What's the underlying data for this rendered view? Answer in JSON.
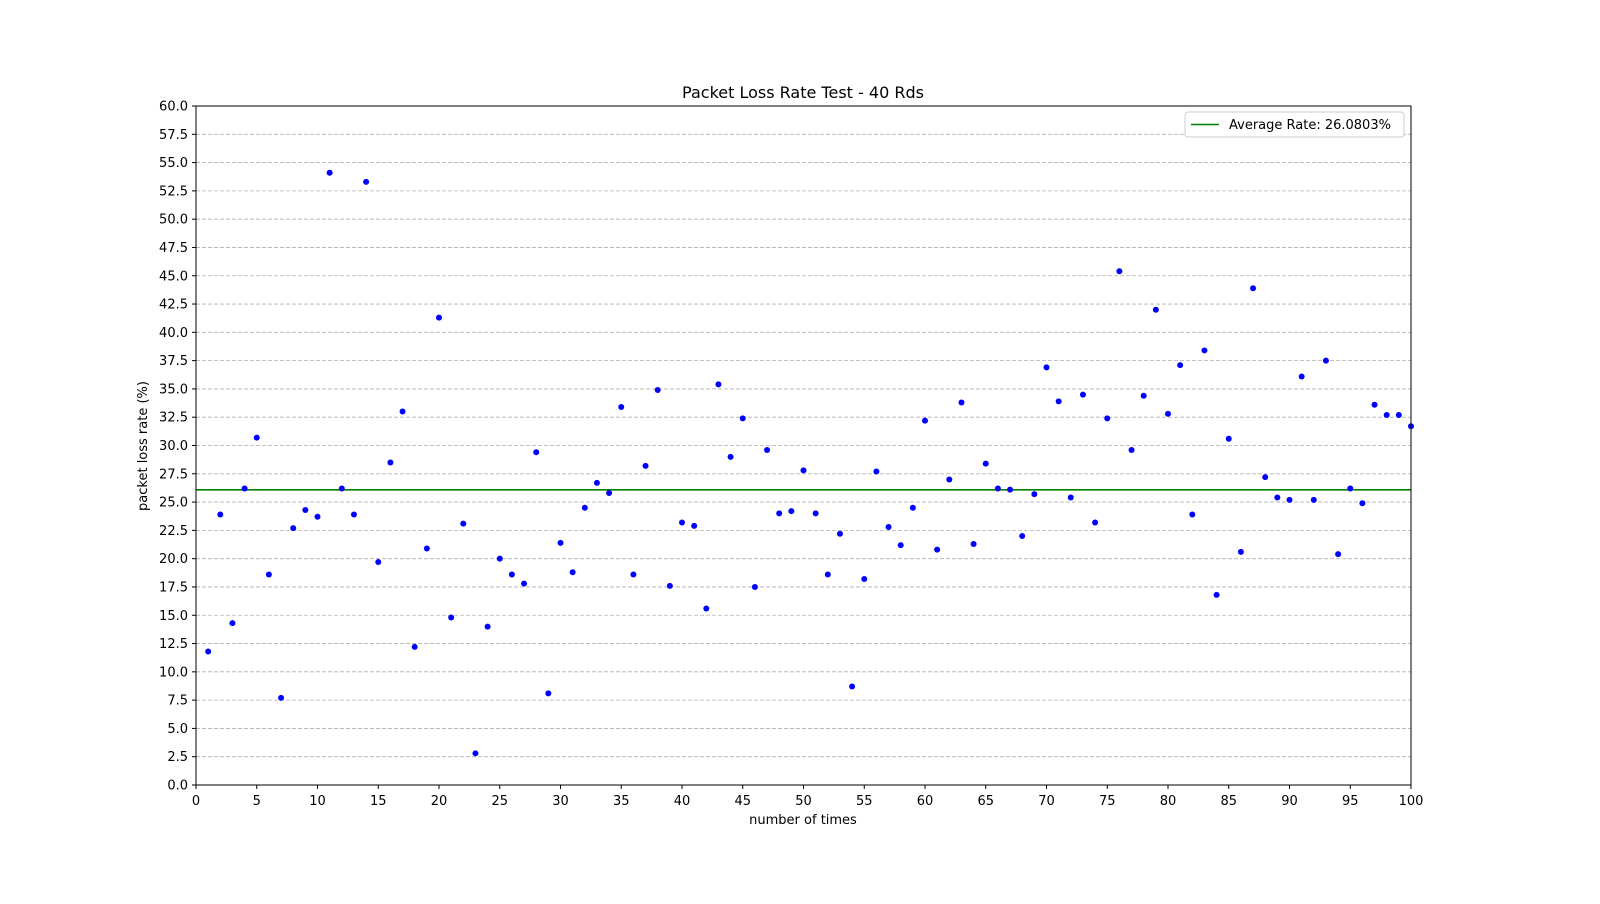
{
  "chart_data": {
    "type": "scatter",
    "title": "Packet Loss Rate Test - 40 Rds",
    "xlabel": "number of times",
    "ylabel": "packet loss rate (%)",
    "xlim": [
      0,
      100
    ],
    "ylim": [
      0,
      60
    ],
    "xticks": [
      0,
      5,
      10,
      15,
      20,
      25,
      30,
      35,
      40,
      45,
      50,
      55,
      60,
      65,
      70,
      75,
      80,
      85,
      90,
      95,
      100
    ],
    "yticks": [
      "0.0",
      "2.5",
      "5.0",
      "7.5",
      "10.0",
      "12.5",
      "15.0",
      "17.5",
      "20.0",
      "22.5",
      "25.0",
      "27.5",
      "30.0",
      "32.5",
      "35.0",
      "37.5",
      "40.0",
      "42.5",
      "45.0",
      "47.5",
      "50.0",
      "52.5",
      "55.0",
      "57.5",
      "60.0"
    ],
    "grid": "horizontal dashed",
    "legend_position": "top-right",
    "point_color": "#0000ff",
    "average": {
      "label": "Average Rate: 26.0803%",
      "value": 26.0803,
      "color": "#008000"
    },
    "x": [
      1,
      2,
      3,
      4,
      5,
      6,
      7,
      8,
      9,
      10,
      11,
      12,
      13,
      14,
      15,
      16,
      17,
      18,
      19,
      20,
      21,
      22,
      23,
      24,
      25,
      26,
      27,
      28,
      29,
      30,
      31,
      32,
      33,
      34,
      35,
      36,
      37,
      38,
      39,
      40,
      41,
      42,
      43,
      44,
      45,
      46,
      47,
      48,
      49,
      50,
      51,
      52,
      53,
      54,
      55,
      56,
      57,
      58,
      59,
      60,
      61,
      62,
      63,
      64,
      65,
      66,
      67,
      68,
      69,
      70,
      71,
      72,
      73,
      74,
      75,
      76,
      77,
      78,
      79,
      80,
      81,
      82,
      83,
      84,
      85,
      86,
      87,
      88,
      89,
      90,
      91,
      92,
      93,
      94,
      95,
      96,
      97,
      98,
      99,
      100
    ],
    "y": [
      11.8,
      23.9,
      14.3,
      26.2,
      30.7,
      18.6,
      7.7,
      22.7,
      24.3,
      23.7,
      54.1,
      26.2,
      23.9,
      53.3,
      19.7,
      28.5,
      33.0,
      12.2,
      20.9,
      41.3,
      14.8,
      23.1,
      2.8,
      14.0,
      20.0,
      18.6,
      17.8,
      29.4,
      8.1,
      21.4,
      18.8,
      24.5,
      26.7,
      25.8,
      33.4,
      18.6,
      28.2,
      34.9,
      17.6,
      23.2,
      22.9,
      15.6,
      35.4,
      29.0,
      32.4,
      17.5,
      29.6,
      24.0,
      24.2,
      27.8,
      24.0,
      18.6,
      22.2,
      8.7,
      18.2,
      27.7,
      22.8,
      21.2,
      24.5,
      32.2,
      20.8,
      27.0,
      33.8,
      21.3,
      28.4,
      26.2,
      26.1,
      22.0,
      25.7,
      36.9,
      33.9,
      25.4,
      34.5,
      23.2,
      32.4,
      45.4,
      29.6,
      34.4,
      42.0,
      32.8,
      37.1,
      23.9,
      38.4,
      16.8,
      30.6,
      20.6,
      43.9,
      27.2,
      25.4,
      25.2,
      36.1,
      25.2,
      37.5,
      20.4,
      26.2,
      24.9,
      33.6,
      32.7,
      32.7,
      31.7
    ]
  }
}
